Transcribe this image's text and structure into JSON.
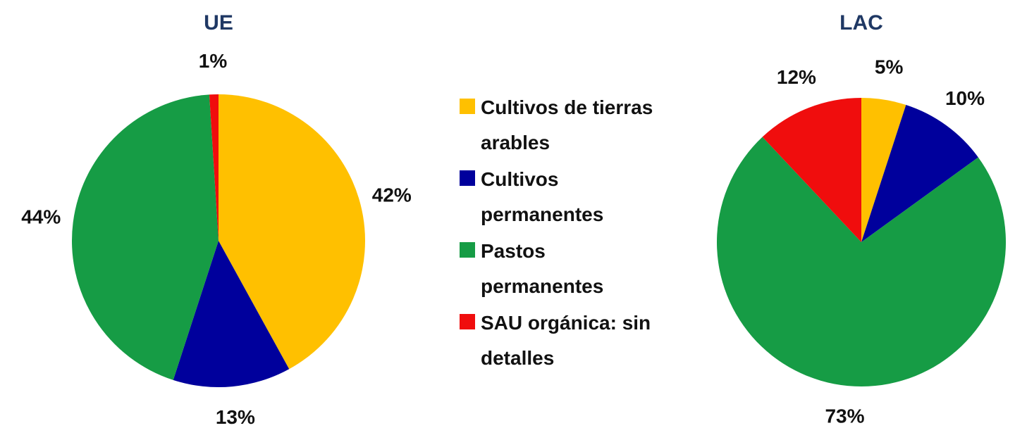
{
  "chart_data": [
    {
      "type": "pie",
      "title": "UE",
      "categories": [
        "Cultivos de tierras arables",
        "Cultivos permanentes",
        "Pastos permanentes",
        "SAU orgánica: sin detalles"
      ],
      "values": [
        42,
        13,
        44,
        1
      ],
      "value_labels": [
        "42%",
        "13%",
        "44%",
        "1%"
      ],
      "colors": [
        "#ffc000",
        "#00009c",
        "#169c45",
        "#f00d0d"
      ]
    },
    {
      "type": "pie",
      "title": "LAC",
      "values": [
        5,
        10,
        73,
        12
      ],
      "value_labels": [
        "5%",
        "10%",
        "73%",
        "12%"
      ],
      "colors": [
        "#ffc000",
        "#00009c",
        "#169c45",
        "#f00d0d"
      ]
    }
  ]
}
